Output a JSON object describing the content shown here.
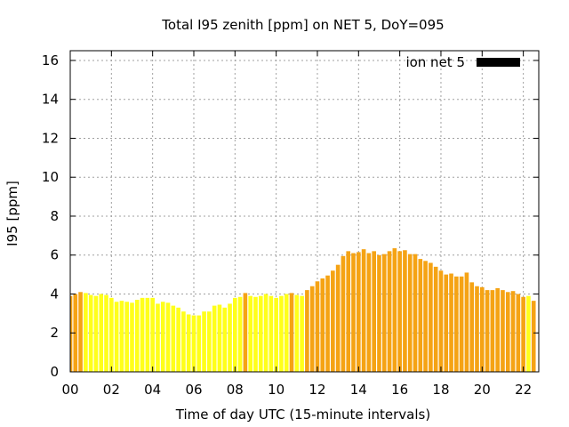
{
  "chart_data": {
    "type": "bar",
    "title": "Total I95 zenith [ppm] on NET 5, DoY=095",
    "xlabel": "Time of day UTC (15-minute intervals)",
    "ylabel": "I95 [ppm]",
    "xlim": [
      0,
      22.75
    ],
    "ylim": [
      0,
      16.5
    ],
    "x_step_hours": 0.25,
    "x_ticks": [
      "00",
      "02",
      "04",
      "06",
      "08",
      "10",
      "12",
      "14",
      "16",
      "18",
      "20",
      "22"
    ],
    "y_ticks": [
      "0",
      "2",
      "4",
      "6",
      "8",
      "10",
      "12",
      "14",
      "16"
    ],
    "grid": true,
    "legend": {
      "position": "top-right",
      "label": "ion net 5",
      "color": "#000000"
    },
    "colors": {
      "low": "#ffff1a",
      "high": "#f5a314"
    },
    "series": [
      {
        "name": "ion net 5",
        "values": [
          3.9,
          4.0,
          4.1,
          4.05,
          3.95,
          3.9,
          4.0,
          3.95,
          3.8,
          3.6,
          3.65,
          3.6,
          3.55,
          3.7,
          3.8,
          3.8,
          3.8,
          3.5,
          3.6,
          3.55,
          3.4,
          3.3,
          3.1,
          2.95,
          2.9,
          2.9,
          3.1,
          3.1,
          3.4,
          3.45,
          3.3,
          3.5,
          3.8,
          3.85,
          4.05,
          3.9,
          3.85,
          3.9,
          4.0,
          3.9,
          3.8,
          3.9,
          4.0,
          4.05,
          3.95,
          3.9,
          4.2,
          4.4,
          4.65,
          4.8,
          4.95,
          5.2,
          5.5,
          5.95,
          6.2,
          6.1,
          6.15,
          6.3,
          6.1,
          6.2,
          6.0,
          6.05,
          6.2,
          6.35,
          6.2,
          6.25,
          6.05,
          6.05,
          5.8,
          5.7,
          5.6,
          5.4,
          5.2,
          5.0,
          5.05,
          4.9,
          4.9,
          5.1,
          4.6,
          4.4,
          4.35,
          4.2,
          4.2,
          4.3,
          4.2,
          4.1,
          4.15,
          4.0,
          3.85,
          3.9,
          3.65
        ],
        "levels": [
          "high",
          "high",
          "high",
          "low",
          "low",
          "low",
          "low",
          "low",
          "low",
          "low",
          "low",
          "low",
          "low",
          "low",
          "low",
          "low",
          "low",
          "low",
          "low",
          "low",
          "low",
          "low",
          "low",
          "low",
          "low",
          "low",
          "low",
          "low",
          "low",
          "low",
          "low",
          "low",
          "low",
          "low",
          "high",
          "low",
          "low",
          "low",
          "low",
          "low",
          "low",
          "low",
          "low",
          "high",
          "low",
          "low",
          "high",
          "high",
          "high",
          "high",
          "high",
          "high",
          "high",
          "high",
          "high",
          "high",
          "high",
          "high",
          "high",
          "high",
          "high",
          "high",
          "high",
          "high",
          "high",
          "high",
          "high",
          "high",
          "high",
          "high",
          "high",
          "high",
          "high",
          "high",
          "high",
          "high",
          "high",
          "high",
          "high",
          "high",
          "high",
          "high",
          "high",
          "high",
          "high",
          "high",
          "high",
          "high",
          "high",
          "low",
          "high"
        ]
      }
    ]
  }
}
